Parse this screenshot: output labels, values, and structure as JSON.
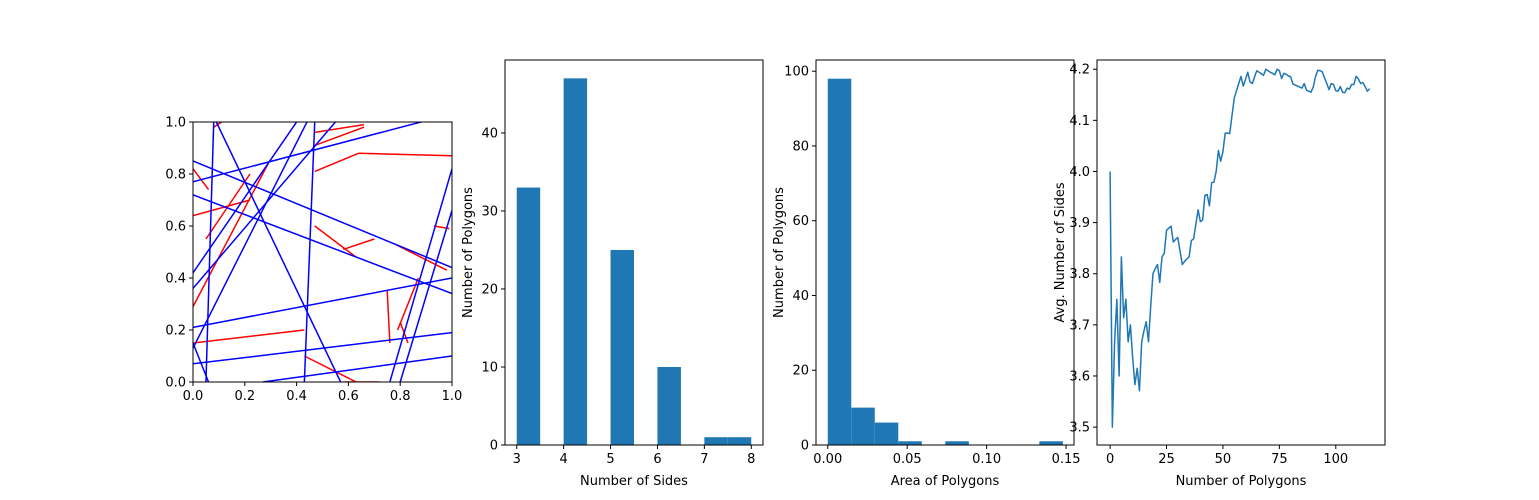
{
  "colors": {
    "bar": "#1f77b4",
    "line": "#1f77b4",
    "red_segment": "#ff0000",
    "blue_line": "#0000ff"
  },
  "chart_data": [
    {
      "type": "scatter",
      "xlim": [
        0,
        1
      ],
      "ylim": [
        0,
        1
      ],
      "x_ticks": [
        "0.0",
        "0.2",
        "0.4",
        "0.6",
        "0.8",
        "1.0"
      ],
      "y_ticks": [
        "0.0",
        "0.2",
        "0.4",
        "0.6",
        "0.8",
        "1.0"
      ],
      "xlabel": "",
      "ylabel": "",
      "blue_lines": [
        [
          0.0,
          0.85,
          1.0,
          0.44
        ],
        [
          0.0,
          0.72,
          1.0,
          0.34
        ],
        [
          0.0,
          0.77,
          0.88,
          1.0
        ],
        [
          0.0,
          0.36,
          0.55,
          1.0
        ],
        [
          0.0,
          0.42,
          0.4,
          1.0
        ],
        [
          0.0,
          0.13,
          0.44,
          1.0
        ],
        [
          0.0,
          0.21,
          1.0,
          0.4
        ],
        [
          0.0,
          0.15,
          0.06,
          0.0
        ],
        [
          0.0,
          0.07,
          1.0,
          0.19
        ],
        [
          0.27,
          0.0,
          1.0,
          0.1
        ],
        [
          0.09,
          1.0,
          0.57,
          0.0
        ],
        [
          0.43,
          0.0,
          0.47,
          1.0
        ],
        [
          0.76,
          0.0,
          1.0,
          0.82
        ],
        [
          0.8,
          0.0,
          1.0,
          0.66
        ],
        [
          0.05,
          0.0,
          0.08,
          1.0
        ]
      ],
      "red_segments": [
        [
          0.0,
          0.64,
          0.22,
          0.7
        ],
        [
          0.0,
          0.29,
          0.29,
          0.84
        ],
        [
          0.05,
          0.55,
          0.22,
          0.8
        ],
        [
          0.0,
          0.15,
          0.43,
          0.2
        ],
        [
          0.47,
          0.81,
          0.64,
          0.88
        ],
        [
          0.64,
          0.88,
          1.0,
          0.87
        ],
        [
          0.47,
          0.91,
          0.66,
          0.98
        ],
        [
          0.47,
          0.96,
          0.66,
          0.99
        ],
        [
          0.47,
          0.6,
          0.63,
          0.48
        ],
        [
          0.58,
          0.51,
          0.7,
          0.55
        ],
        [
          0.78,
          0.53,
          0.98,
          0.43
        ],
        [
          0.75,
          0.35,
          0.76,
          0.15
        ],
        [
          0.79,
          0.2,
          0.87,
          0.4
        ],
        [
          0.8,
          0.23,
          0.83,
          0.15
        ],
        [
          0.43,
          0.1,
          0.63,
          0.0
        ],
        [
          0.58,
          0.0,
          0.72,
          0.0
        ],
        [
          0.93,
          0.6,
          0.99,
          0.59
        ],
        [
          0.0,
          0.82,
          0.06,
          0.74
        ],
        [
          0.08,
          0.98,
          0.11,
          1.0
        ]
      ]
    },
    {
      "type": "bar",
      "xlabel": "Number of Sides",
      "ylabel": "Number of Polygons",
      "xlim": [
        2.75,
        8.25
      ],
      "ylim": [
        0,
        49.35
      ],
      "x_ticks": [
        3,
        4,
        5,
        6,
        7,
        8
      ],
      "y_ticks": [
        0,
        10,
        20,
        30,
        40
      ],
      "bins": [
        [
          3.0,
          3.5
        ],
        [
          4.0,
          4.5
        ],
        [
          5.0,
          5.5
        ],
        [
          6.0,
          6.5
        ],
        [
          7.0,
          7.5
        ],
        [
          7.5,
          8.0
        ]
      ],
      "values": [
        33,
        47,
        25,
        10,
        1,
        1
      ]
    },
    {
      "type": "bar",
      "xlabel": "Area of Polygons",
      "ylabel": "Number of Polygons",
      "xlim": [
        -0.0074,
        0.155
      ],
      "ylim": [
        0,
        103
      ],
      "x_ticks": [
        "0.00",
        "0.05",
        "0.10",
        "0.15"
      ],
      "x_tick_values": [
        0,
        0.05,
        0.1,
        0.15
      ],
      "y_ticks": [
        0,
        20,
        40,
        60,
        80,
        100
      ],
      "bin_edges": [
        0.0,
        0.0148,
        0.0296,
        0.0444,
        0.0592,
        0.074,
        0.0888,
        0.1036,
        0.1184,
        0.1332,
        0.148
      ],
      "values": [
        98,
        10,
        6,
        1,
        0,
        1,
        0,
        0,
        0,
        1
      ]
    },
    {
      "type": "line",
      "xlabel": "Number of Polygons",
      "ylabel": "Avg. Number of Sides",
      "xlim": [
        -5.8,
        121.8
      ],
      "ylim": [
        3.465,
        4.218
      ],
      "x_ticks": [
        0,
        25,
        50,
        75,
        100
      ],
      "y_ticks": [
        "3.5",
        "3.6",
        "3.7",
        "3.8",
        "3.9",
        "4.0",
        "4.1",
        "4.2"
      ],
      "x": [
        0,
        1,
        2,
        3,
        4,
        5,
        6,
        7,
        8,
        9,
        10,
        11,
        12,
        13,
        14,
        15,
        16,
        17,
        18,
        19,
        20,
        21,
        22,
        23,
        24,
        25,
        26,
        27,
        28,
        29,
        30,
        31,
        32,
        33,
        34,
        35,
        36,
        37,
        38,
        39,
        40,
        41,
        42,
        43,
        44,
        45,
        46,
        47,
        48,
        49,
        50,
        51,
        52,
        53,
        54,
        55,
        56,
        57,
        58,
        59,
        60,
        61,
        62,
        63,
        64,
        65,
        66,
        67,
        68,
        69,
        70,
        71,
        72,
        73,
        74,
        75,
        76,
        77,
        78,
        79,
        80,
        81,
        82,
        83,
        84,
        85,
        86,
        87,
        88,
        89,
        90,
        91,
        92,
        93,
        94,
        95,
        96,
        97,
        98,
        99,
        100,
        101,
        102,
        103,
        104,
        105,
        106,
        107,
        108,
        109,
        110,
        111,
        112,
        113,
        114,
        115
      ],
      "y": [
        4.0,
        3.5,
        3.667,
        3.75,
        3.6,
        3.833,
        3.714,
        3.75,
        3.667,
        3.7,
        3.636,
        3.583,
        3.615,
        3.571,
        3.667,
        3.688,
        3.706,
        3.667,
        3.737,
        3.8,
        3.81,
        3.818,
        3.783,
        3.833,
        3.84,
        3.885,
        3.889,
        3.893,
        3.862,
        3.867,
        3.871,
        3.844,
        3.818,
        3.824,
        3.829,
        3.833,
        3.865,
        3.868,
        3.897,
        3.925,
        3.902,
        3.905,
        3.953,
        3.955,
        3.933,
        3.978,
        3.979,
        4.0,
        4.041,
        4.02,
        4.039,
        4.075,
        4.075,
        4.074,
        4.109,
        4.143,
        4.158,
        4.172,
        4.186,
        4.167,
        4.18,
        4.194,
        4.175,
        4.172,
        4.185,
        4.197,
        4.194,
        4.191,
        4.188,
        4.2,
        4.197,
        4.194,
        4.192,
        4.189,
        4.2,
        4.197,
        4.182,
        4.192,
        4.19,
        4.187,
        4.185,
        4.171,
        4.169,
        4.167,
        4.165,
        4.163,
        4.172,
        4.159,
        4.157,
        4.155,
        4.165,
        4.185,
        4.198,
        4.197,
        4.195,
        4.183,
        4.172,
        4.16,
        4.172,
        4.17,
        4.158,
        4.157,
        4.166,
        4.155,
        4.154,
        4.163,
        4.161,
        4.17,
        4.17,
        4.186,
        4.181,
        4.172,
        4.174,
        4.166,
        4.157,
        4.162
      ]
    }
  ]
}
